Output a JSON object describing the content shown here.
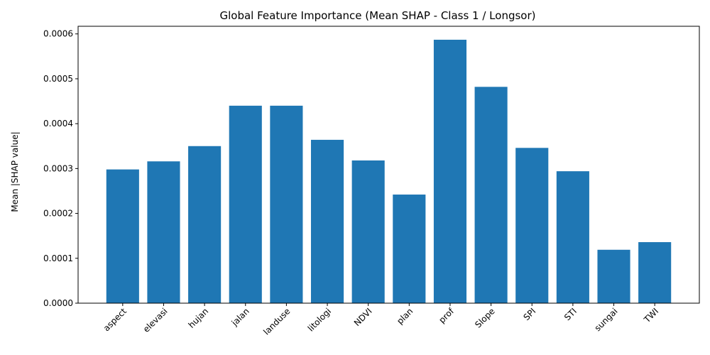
{
  "chart_data": {
    "type": "bar",
    "title": "Global Feature Importance (Mean SHAP - Class 1 / Longsor)",
    "xlabel": "",
    "ylabel": "Mean |SHAP value|",
    "categories": [
      "aspect",
      "elevasi",
      "hujan",
      "jalan",
      "landuse",
      "litologi",
      "NDVI",
      "plan",
      "prof",
      "Slope",
      "SPI",
      "STI",
      "sungai",
      "TWI"
    ],
    "values": [
      0.000298,
      0.000316,
      0.00035,
      0.00044,
      0.00044,
      0.000364,
      0.000318,
      0.000242,
      0.000587,
      0.000482,
      0.000346,
      0.000294,
      0.000119,
      0.000136
    ],
    "ylim": [
      0,
      0.000617
    ],
    "yticks": [
      "0.0000",
      "0.0001",
      "0.0002",
      "0.0003",
      "0.0004",
      "0.0005",
      "0.0006"
    ],
    "grid": false,
    "bar_color": "#1f77b4"
  }
}
